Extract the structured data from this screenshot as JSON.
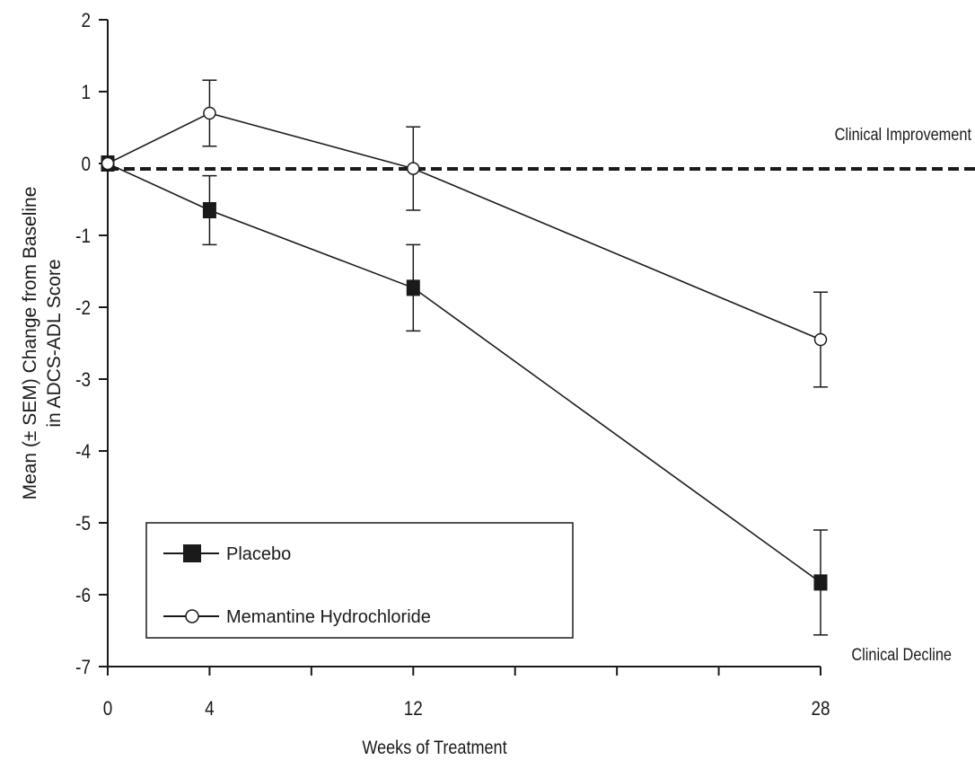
{
  "chart_data": {
    "type": "line",
    "xlabel": "Weeks of Treatment",
    "ylabel_line1": "Mean (± SEM) Change from Baseline",
    "ylabel_line2": "in ADCS-ADL Score",
    "xlim": [
      0,
      28
    ],
    "ylim": [
      -7,
      2
    ],
    "x_ticks": [
      0,
      4,
      12,
      28
    ],
    "x_minor_ticks": [
      8,
      16,
      20,
      24
    ],
    "y_ticks": [
      2,
      1,
      0,
      -1,
      -2,
      -3,
      -4,
      -5,
      -6,
      -7
    ],
    "reference_line": {
      "y": 0,
      "style": "dashed"
    },
    "annotations": {
      "improvement": "Clinical Improvement",
      "decline": "Clinical Decline"
    },
    "legend": {
      "position": "bottom-left"
    },
    "series": [
      {
        "name": "Placebo",
        "marker": "filled-square",
        "color": "#1a1a1a",
        "x": [
          0,
          4,
          12,
          28
        ],
        "y": [
          0,
          -0.65,
          -1.73,
          -5.83
        ],
        "err": [
          0,
          0.48,
          0.6,
          0.73
        ]
      },
      {
        "name": "Memantine Hydrochloride",
        "marker": "open-circle",
        "color": "#1a1a1a",
        "x": [
          0,
          4,
          12,
          28
        ],
        "y": [
          0,
          0.7,
          -0.07,
          -2.45
        ],
        "err": [
          0,
          0.46,
          0.58,
          0.66
        ]
      }
    ]
  }
}
